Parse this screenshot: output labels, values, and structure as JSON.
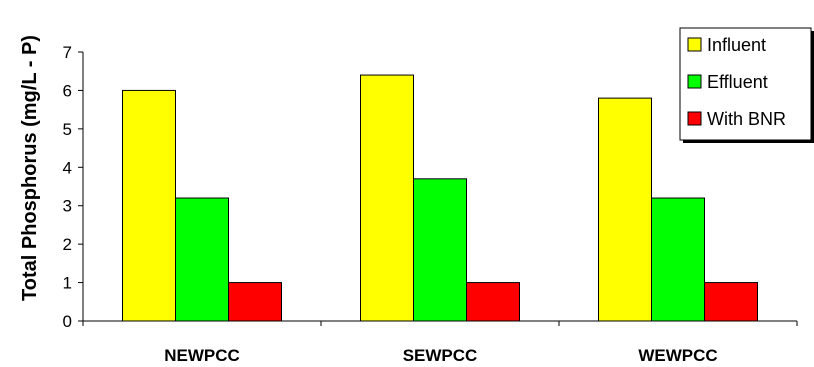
{
  "chart_data": {
    "type": "bar",
    "categories": [
      "NEWPCC",
      "SEWPCC",
      "WEWPCC"
    ],
    "series": [
      {
        "name": "Influent",
        "values": [
          6.0,
          6.4,
          5.8
        ],
        "color": "#ffff00"
      },
      {
        "name": "Effluent",
        "values": [
          3.2,
          3.7,
          3.2
        ],
        "color": "#00ff00"
      },
      {
        "name": "With BNR",
        "values": [
          1.0,
          1.0,
          1.0
        ],
        "color": "#ff0000"
      }
    ],
    "title": "",
    "xlabel": "",
    "ylabel": "Total Phosphorus (mg/L - P)",
    "ylim": [
      0,
      7
    ],
    "yticks": [
      "0",
      "1",
      "2",
      "3",
      "4",
      "5",
      "6",
      "7"
    ],
    "grid": false,
    "legend_position": "top-right"
  }
}
